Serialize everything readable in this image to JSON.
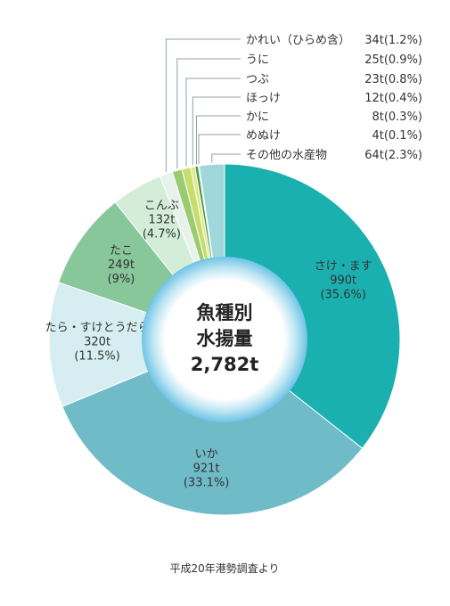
{
  "chart_data": {
    "type": "pie",
    "center_label": [
      "魚種別",
      "水揚量",
      "2,782t"
    ],
    "slices": [
      {
        "name": "さけ・ます",
        "amount": "990t",
        "percent": "35.6%",
        "value": 35.6,
        "color": "#1BB0B0"
      },
      {
        "name": "いか",
        "amount": "921t",
        "percent": "33.1%",
        "value": 33.1,
        "color": "#6FBBC8"
      },
      {
        "name": "たら・すけとうだら",
        "amount": "320t",
        "percent": "11.5%",
        "value": 11.5,
        "color": "#D6EEF1"
      },
      {
        "name": "たこ",
        "amount": "249t",
        "percent": "9%",
        "value": 9.0,
        "color": "#88C79A"
      },
      {
        "name": "こんぶ",
        "amount": "132t",
        "percent": "4.7%",
        "value": 4.7,
        "color": "#D4EDD8"
      },
      {
        "name": "かれい（ひらめ含）",
        "amount": "34t",
        "percent": "1.2%",
        "value": 1.2,
        "color": "#E6F2EA"
      },
      {
        "name": "うに",
        "amount": "25t",
        "percent": "0.9%",
        "value": 0.9,
        "color": "#9BCB71"
      },
      {
        "name": "つぶ",
        "amount": "23t",
        "percent": "0.8%",
        "value": 0.8,
        "color": "#C8DE6C"
      },
      {
        "name": "ほっけ",
        "amount": "12t",
        "percent": "0.4%",
        "value": 0.4,
        "color": "#E4E78C"
      },
      {
        "name": "かに",
        "amount": "8t",
        "percent": "0.3%",
        "value": 0.3,
        "color": "#3E9E3E"
      },
      {
        "name": "めぬけ",
        "amount": "4t",
        "percent": "0.1%",
        "value": 0.1,
        "color": "#2E7DC1"
      },
      {
        "name": "その他の水産物",
        "amount": "64t",
        "percent": "2.3%",
        "value": 2.3,
        "color": "#9FD7DB"
      }
    ]
  },
  "source": "平成20年港勢調査より"
}
